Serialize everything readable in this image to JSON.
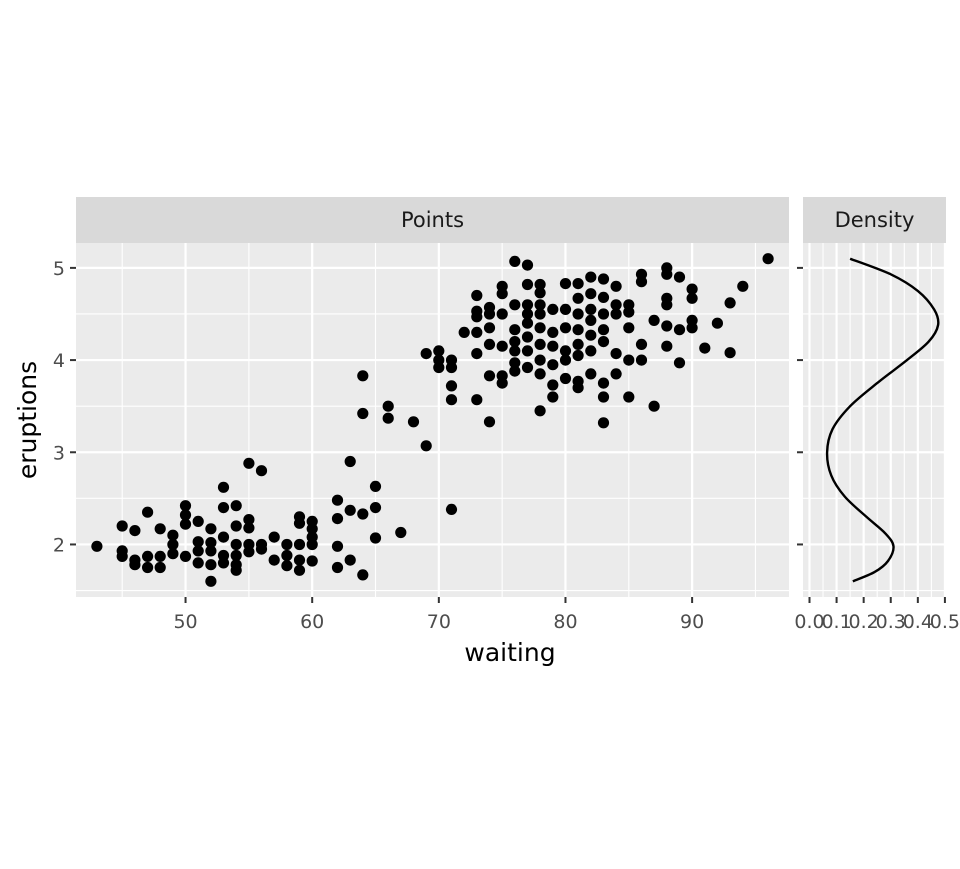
{
  "chart_data": [
    {
      "type": "scatter",
      "panel": "Points",
      "xlabel": "waiting",
      "ylabel": "eruptions",
      "xlim": [
        41.35,
        97.65
      ],
      "ylim": [
        1.43,
        5.27
      ],
      "xticks": [
        50,
        60,
        70,
        80,
        90
      ],
      "yticks": [
        2,
        3,
        4,
        5
      ],
      "grid": true,
      "points": [
        [
          43,
          1.98
        ],
        [
          45,
          2.2
        ],
        [
          45,
          1.93
        ],
        [
          45,
          1.87
        ],
        [
          46,
          2.15
        ],
        [
          46,
          1.83
        ],
        [
          46,
          1.78
        ],
        [
          47,
          2.35
        ],
        [
          47,
          1.87
        ],
        [
          47,
          1.75
        ],
        [
          48,
          2.17
        ],
        [
          48,
          1.87
        ],
        [
          48,
          1.75
        ],
        [
          49,
          2.1
        ],
        [
          49,
          2.0
        ],
        [
          49,
          1.9
        ],
        [
          50,
          2.42
        ],
        [
          50,
          2.32
        ],
        [
          50,
          2.22
        ],
        [
          50,
          1.87
        ],
        [
          51,
          2.25
        ],
        [
          51,
          2.03
        ],
        [
          51,
          1.93
        ],
        [
          51,
          1.8
        ],
        [
          52,
          2.17
        ],
        [
          52,
          2.02
        ],
        [
          52,
          1.93
        ],
        [
          52,
          1.78
        ],
        [
          52,
          1.6
        ],
        [
          53,
          2.62
        ],
        [
          53,
          2.4
        ],
        [
          53,
          2.08
        ],
        [
          53,
          1.88
        ],
        [
          53,
          1.8
        ],
        [
          54,
          2.42
        ],
        [
          54,
          2.2
        ],
        [
          54,
          2.0
        ],
        [
          54,
          1.88
        ],
        [
          54,
          1.78
        ],
        [
          54,
          1.72
        ],
        [
          55,
          2.88
        ],
        [
          55,
          2.27
        ],
        [
          55,
          2.18
        ],
        [
          55,
          2.0
        ],
        [
          55,
          1.92
        ],
        [
          56,
          2.8
        ],
        [
          56,
          2.0
        ],
        [
          56,
          1.95
        ],
        [
          57,
          2.08
        ],
        [
          57,
          1.83
        ],
        [
          58,
          2.0
        ],
        [
          58,
          1.88
        ],
        [
          58,
          1.77
        ],
        [
          59,
          2.3
        ],
        [
          59,
          2.23
        ],
        [
          59,
          2.0
        ],
        [
          59,
          1.83
        ],
        [
          59,
          1.72
        ],
        [
          60,
          2.25
        ],
        [
          60,
          2.17
        ],
        [
          60,
          2.08
        ],
        [
          60,
          2.0
        ],
        [
          60,
          1.82
        ],
        [
          62,
          2.48
        ],
        [
          62,
          2.28
        ],
        [
          62,
          1.98
        ],
        [
          62,
          1.75
        ],
        [
          63,
          2.9
        ],
        [
          63,
          2.37
        ],
        [
          63,
          1.83
        ],
        [
          64,
          3.83
        ],
        [
          64,
          3.42
        ],
        [
          64,
          2.33
        ],
        [
          64,
          1.67
        ],
        [
          65,
          2.63
        ],
        [
          65,
          2.4
        ],
        [
          65,
          2.07
        ],
        [
          66,
          3.5
        ],
        [
          66,
          3.37
        ],
        [
          67,
          2.13
        ],
        [
          68,
          3.33
        ],
        [
          69,
          4.07
        ],
        [
          69,
          3.07
        ],
        [
          70,
          4.1
        ],
        [
          70,
          4.0
        ],
        [
          70,
          3.92
        ],
        [
          71,
          4.0
        ],
        [
          71,
          3.92
        ],
        [
          71,
          3.72
        ],
        [
          71,
          3.57
        ],
        [
          71,
          2.38
        ],
        [
          72,
          4.3
        ],
        [
          73,
          4.7
        ],
        [
          73,
          4.53
        ],
        [
          73,
          4.47
        ],
        [
          73,
          4.3
        ],
        [
          73,
          4.07
        ],
        [
          73,
          3.57
        ],
        [
          74,
          4.57
        ],
        [
          74,
          4.5
        ],
        [
          74,
          4.35
        ],
        [
          74,
          4.17
        ],
        [
          74,
          3.83
        ],
        [
          74,
          3.33
        ],
        [
          75,
          4.8
        ],
        [
          75,
          4.72
        ],
        [
          75,
          4.5
        ],
        [
          75,
          4.15
        ],
        [
          75,
          3.83
        ],
        [
          75,
          3.75
        ],
        [
          76,
          5.07
        ],
        [
          76,
          4.6
        ],
        [
          76,
          4.33
        ],
        [
          76,
          4.2
        ],
        [
          76,
          4.1
        ],
        [
          76,
          3.97
        ],
        [
          76,
          3.88
        ],
        [
          77,
          5.03
        ],
        [
          77,
          4.82
        ],
        [
          77,
          4.6
        ],
        [
          77,
          4.5
        ],
        [
          77,
          4.4
        ],
        [
          77,
          4.25
        ],
        [
          77,
          4.1
        ],
        [
          77,
          3.92
        ],
        [
          78,
          4.82
        ],
        [
          78,
          4.73
        ],
        [
          78,
          4.6
        ],
        [
          78,
          4.5
        ],
        [
          78,
          4.35
        ],
        [
          78,
          4.17
        ],
        [
          78,
          4.0
        ],
        [
          78,
          3.85
        ],
        [
          78,
          3.45
        ],
        [
          79,
          4.55
        ],
        [
          79,
          4.3
        ],
        [
          79,
          4.15
        ],
        [
          79,
          3.95
        ],
        [
          79,
          3.73
        ],
        [
          79,
          3.6
        ],
        [
          80,
          4.83
        ],
        [
          80,
          4.55
        ],
        [
          80,
          4.35
        ],
        [
          80,
          4.1
        ],
        [
          80,
          4.0
        ],
        [
          80,
          3.8
        ],
        [
          81,
          4.83
        ],
        [
          81,
          4.67
        ],
        [
          81,
          4.5
        ],
        [
          81,
          4.33
        ],
        [
          81,
          4.17
        ],
        [
          81,
          4.05
        ],
        [
          81,
          3.77
        ],
        [
          81,
          3.7
        ],
        [
          82,
          4.9
        ],
        [
          82,
          4.72
        ],
        [
          82,
          4.55
        ],
        [
          82,
          4.43
        ],
        [
          82,
          4.27
        ],
        [
          82,
          4.1
        ],
        [
          82,
          3.85
        ],
        [
          83,
          4.88
        ],
        [
          83,
          4.68
        ],
        [
          83,
          4.5
        ],
        [
          83,
          4.33
        ],
        [
          83,
          4.2
        ],
        [
          83,
          3.75
        ],
        [
          83,
          3.6
        ],
        [
          83,
          3.32
        ],
        [
          84,
          4.8
        ],
        [
          84,
          4.6
        ],
        [
          84,
          4.5
        ],
        [
          84,
          4.07
        ],
        [
          84,
          3.85
        ],
        [
          85,
          4.6
        ],
        [
          85,
          4.52
        ],
        [
          85,
          4.35
        ],
        [
          85,
          4.0
        ],
        [
          85,
          3.6
        ],
        [
          86,
          4.93
        ],
        [
          86,
          4.85
        ],
        [
          86,
          4.17
        ],
        [
          86,
          4.0
        ],
        [
          87,
          4.43
        ],
        [
          87,
          3.5
        ],
        [
          88,
          5.0
        ],
        [
          88,
          4.93
        ],
        [
          88,
          4.67
        ],
        [
          88,
          4.6
        ],
        [
          88,
          4.37
        ],
        [
          88,
          4.15
        ],
        [
          89,
          4.9
        ],
        [
          89,
          4.33
        ],
        [
          89,
          3.97
        ],
        [
          90,
          4.77
        ],
        [
          90,
          4.67
        ],
        [
          90,
          4.43
        ],
        [
          90,
          4.35
        ],
        [
          91,
          4.13
        ],
        [
          92,
          4.4
        ],
        [
          93,
          4.62
        ],
        [
          93,
          4.08
        ],
        [
          94,
          4.8
        ],
        [
          96,
          5.1
        ]
      ]
    },
    {
      "type": "line",
      "panel": "Density",
      "xlim": [
        -0.024,
        0.504
      ],
      "ylim": [
        1.43,
        5.27
      ],
      "xticks": [
        "0.0",
        "0.1",
        "0.2",
        "0.3",
        "0.4",
        "0.5"
      ],
      "xtick_values": [
        0.0,
        0.1,
        0.2,
        0.3,
        0.4,
        0.5
      ],
      "grid": true,
      "curve": [
        [
          0.16,
          1.6
        ],
        [
          0.24,
          1.7
        ],
        [
          0.29,
          1.82
        ],
        [
          0.31,
          1.98
        ],
        [
          0.28,
          2.12
        ],
        [
          0.21,
          2.3
        ],
        [
          0.13,
          2.52
        ],
        [
          0.08,
          2.75
        ],
        [
          0.065,
          3.0
        ],
        [
          0.085,
          3.25
        ],
        [
          0.15,
          3.5
        ],
        [
          0.25,
          3.75
        ],
        [
          0.36,
          4.0
        ],
        [
          0.44,
          4.2
        ],
        [
          0.475,
          4.38
        ],
        [
          0.46,
          4.55
        ],
        [
          0.4,
          4.75
        ],
        [
          0.3,
          4.93
        ],
        [
          0.15,
          5.1
        ]
      ]
    }
  ]
}
